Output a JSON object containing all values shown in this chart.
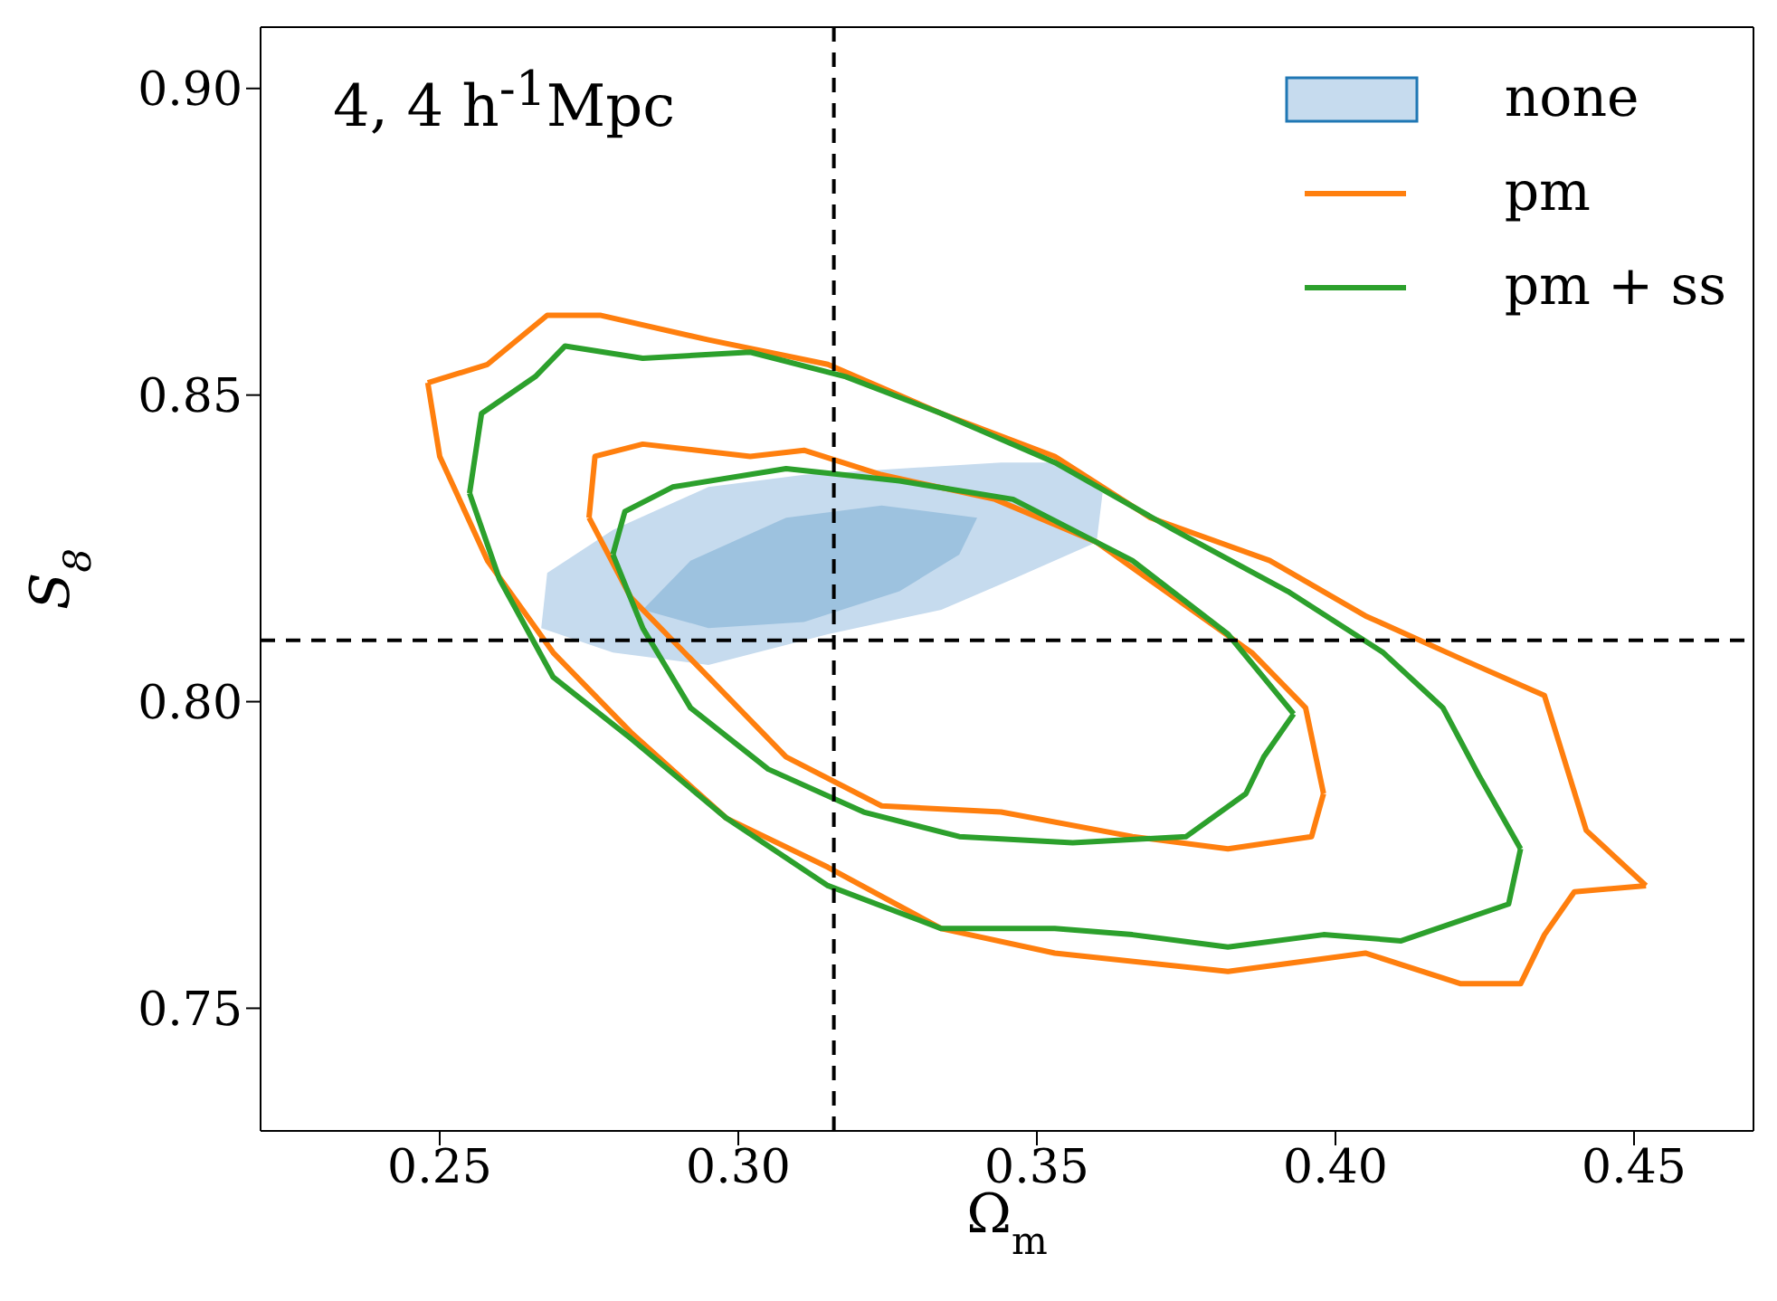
{
  "chart_data": {
    "type": "line",
    "xlabel": "Ω$_{m}$",
    "ylabel": "S$_{8}$",
    "annotations": [
      "4, 4 h$^{-1}$Mpc"
    ],
    "xlim": [
      0.22,
      0.47
    ],
    "ylim": [
      0.73,
      0.91
    ],
    "xticks": [
      0.25,
      {
        "value": 0.3,
        "label": "0.30"
      },
      0.35,
      {
        "value": 0.4,
        "label": "0.40"
      },
      0.45
    ],
    "yticks": [
      0.75,
      {
        "value": 0.8,
        "label": "0.80"
      },
      0.85,
      {
        "value": 0.9,
        "label": "0.90"
      }
    ],
    "grid": false,
    "legend": "top right",
    "line_style": "solid",
    "marker": "none",
    "ref_lines": [
      {
        "axis": "x",
        "value": 0.316,
        "color": "#000000",
        "line_style": "dashed"
      },
      {
        "axis": "y",
        "value": 0.81,
        "color": "#000000",
        "line_style": "dashed"
      }
    ],
    "series": [
      {
        "name": "none",
        "type": "area",
        "color": "#c6dbee",
        "x": [
          0.268,
          0.279,
          0.295,
          0.311,
          0.327,
          0.344,
          0.353,
          0.361,
          0.36,
          0.346,
          0.334,
          0.315,
          0.295,
          0.279,
          0.267
        ],
        "values": [
          0.821,
          0.828,
          0.835,
          0.837,
          0.838,
          0.839,
          0.839,
          0.834,
          0.826,
          0.82,
          0.815,
          0.811,
          0.806,
          0.808,
          0.812
        ]
      },
      {
        "type": "area",
        "color": "#9dc2df",
        "x": [
          0.284,
          0.292,
          0.308,
          0.324,
          0.34,
          0.337,
          0.327,
          0.311,
          0.295
        ],
        "values": [
          0.815,
          0.823,
          0.83,
          0.832,
          0.83,
          0.824,
          0.818,
          0.813,
          0.812
        ]
      },
      {
        "name": "pm",
        "color": "#ff7f0e",
        "x": [
          0.248,
          0.258,
          0.268,
          0.277,
          0.295,
          0.315,
          0.334,
          0.353,
          0.369,
          0.389,
          0.405,
          0.421,
          0.435,
          0.442,
          0.452
        ],
        "values": [
          0.852,
          0.855,
          0.863,
          0.863,
          0.859,
          0.855,
          0.847,
          0.84,
          0.83,
          0.823,
          0.814,
          0.807,
          0.801,
          0.779,
          0.77
        ]
      },
      {
        "color": "#ff7f0e",
        "x": [
          0.248,
          0.25,
          0.258,
          0.269,
          0.282,
          0.298,
          0.315,
          0.334,
          0.353,
          0.382,
          0.405,
          0.421,
          0.431,
          0.435,
          0.44,
          0.452
        ],
        "values": [
          0.852,
          0.84,
          0.823,
          0.808,
          0.795,
          0.781,
          0.773,
          0.763,
          0.759,
          0.756,
          0.759,
          0.754,
          0.754,
          0.762,
          0.769,
          0.77
        ]
      },
      {
        "color": "#ff7f0e",
        "x": [
          0.275,
          0.276,
          0.284,
          0.302,
          0.311,
          0.324,
          0.343,
          0.36,
          0.373,
          0.386,
          0.395,
          0.398
        ],
        "values": [
          0.83,
          0.84,
          0.842,
          0.84,
          0.841,
          0.837,
          0.833,
          0.826,
          0.817,
          0.808,
          0.799,
          0.785
        ]
      },
      {
        "color": "#ff7f0e",
        "x": [
          0.275,
          0.282,
          0.295,
          0.308,
          0.324,
          0.344,
          0.366,
          0.382,
          0.396,
          0.398
        ],
        "values": [
          0.83,
          0.817,
          0.804,
          0.791,
          0.783,
          0.782,
          0.778,
          0.776,
          0.778,
          0.785
        ]
      },
      {
        "name": "pm + ss",
        "color": "#2ca02c",
        "x": [
          0.255,
          0.257,
          0.266,
          0.271,
          0.284,
          0.302,
          0.318,
          0.334,
          0.353,
          0.373,
          0.392,
          0.408,
          0.418,
          0.424,
          0.431
        ],
        "values": [
          0.834,
          0.847,
          0.853,
          0.858,
          0.856,
          0.857,
          0.853,
          0.847,
          0.839,
          0.828,
          0.818,
          0.808,
          0.799,
          0.788,
          0.776
        ]
      },
      {
        "color": "#2ca02c",
        "x": [
          0.255,
          0.26,
          0.269,
          0.282,
          0.298,
          0.315,
          0.334,
          0.353,
          0.366,
          0.382,
          0.398,
          0.411,
          0.423,
          0.429,
          0.431
        ],
        "values": [
          0.834,
          0.82,
          0.804,
          0.794,
          0.781,
          0.77,
          0.763,
          0.763,
          0.762,
          0.76,
          0.762,
          0.761,
          0.765,
          0.767,
          0.776
        ]
      },
      {
        "color": "#2ca02c",
        "x": [
          0.279,
          0.281,
          0.289,
          0.308,
          0.327,
          0.346,
          0.366,
          0.382,
          0.393
        ],
        "values": [
          0.824,
          0.831,
          0.835,
          0.838,
          0.836,
          0.833,
          0.823,
          0.811,
          0.798
        ]
      },
      {
        "color": "#2ca02c",
        "x": [
          0.279,
          0.284,
          0.292,
          0.305,
          0.321,
          0.337,
          0.356,
          0.375,
          0.385,
          0.388,
          0.393
        ],
        "values": [
          0.824,
          0.812,
          0.799,
          0.789,
          0.782,
          0.778,
          0.777,
          0.778,
          0.785,
          0.791,
          0.798
        ]
      }
    ]
  }
}
